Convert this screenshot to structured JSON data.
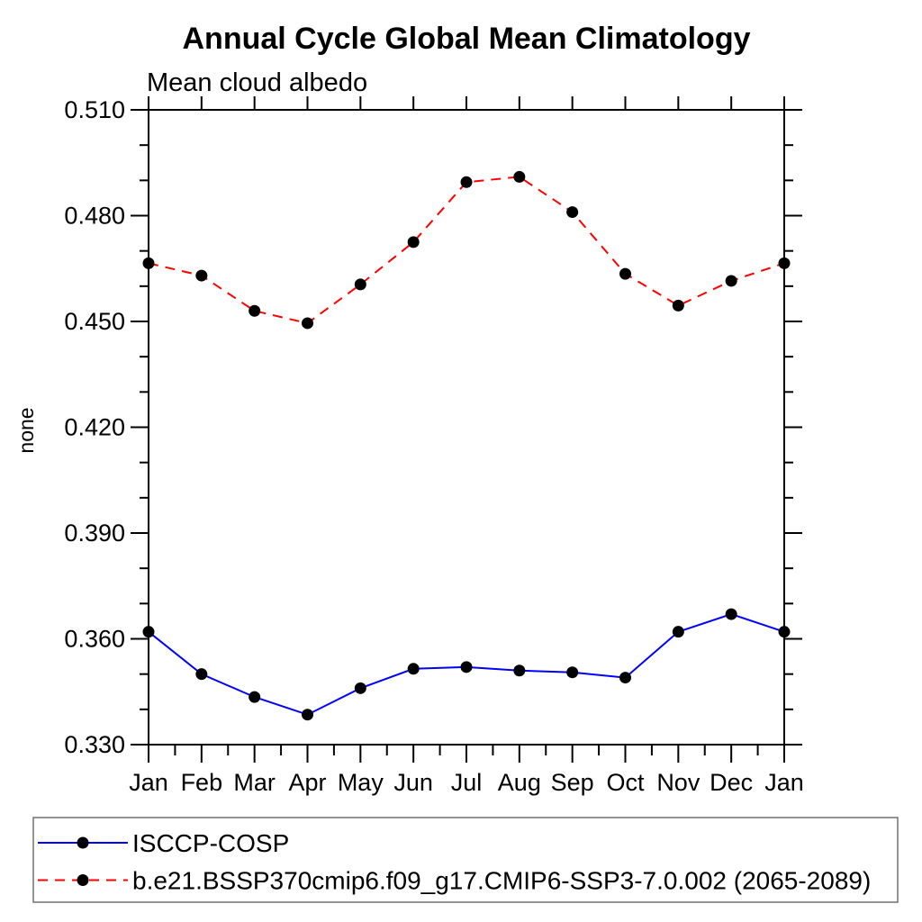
{
  "title": "Annual Cycle Global Mean Climatology",
  "subtitle": "Mean cloud albedo",
  "y_axis_label": "none",
  "colors": {
    "series_obs": "#0000ff",
    "series_model": "#ff0000",
    "marker": "#000000",
    "frame": "#000000",
    "legend_border": "#707070",
    "background": "#ffffff"
  },
  "chart_data": {
    "type": "line",
    "title": "Annual Cycle Global Mean Climatology",
    "subtitle": "Mean cloud albedo",
    "xlabel": "",
    "ylabel": "none",
    "x_categories": [
      "Jan",
      "Feb",
      "Mar",
      "Apr",
      "May",
      "Jun",
      "Jul",
      "Aug",
      "Sep",
      "Oct",
      "Nov",
      "Dec",
      "Jan"
    ],
    "ylim": [
      0.33,
      0.51
    ],
    "y_major_tick_step": 0.03,
    "y_minor_tick_step": 0.01,
    "y_tick_labels": [
      "0.330",
      "0.360",
      "0.390",
      "0.420",
      "0.450",
      "0.480",
      "0.510"
    ],
    "grid": false,
    "legend_position": "bottom-left-boxed",
    "series": [
      {
        "name": "ISCCP-COSP",
        "color": "#0000ff",
        "line_style": "solid",
        "marker": "filled-circle",
        "marker_color": "#000000",
        "values": [
          0.362,
          0.35,
          0.3435,
          0.3385,
          0.346,
          0.3515,
          0.352,
          0.351,
          0.3505,
          0.349,
          0.362,
          0.367,
          0.362
        ]
      },
      {
        "name": "b.e21.BSSP370cmip6.f09_g17.CMIP6-SSP3-7.0.002 (2065-2089)",
        "color": "#ff0000",
        "line_style": "dashed",
        "marker": "filled-circle",
        "marker_color": "#000000",
        "values": [
          0.4665,
          0.463,
          0.453,
          0.4495,
          0.4605,
          0.4725,
          0.4895,
          0.491,
          0.481,
          0.4635,
          0.4545,
          0.4615,
          0.4665
        ]
      }
    ]
  }
}
